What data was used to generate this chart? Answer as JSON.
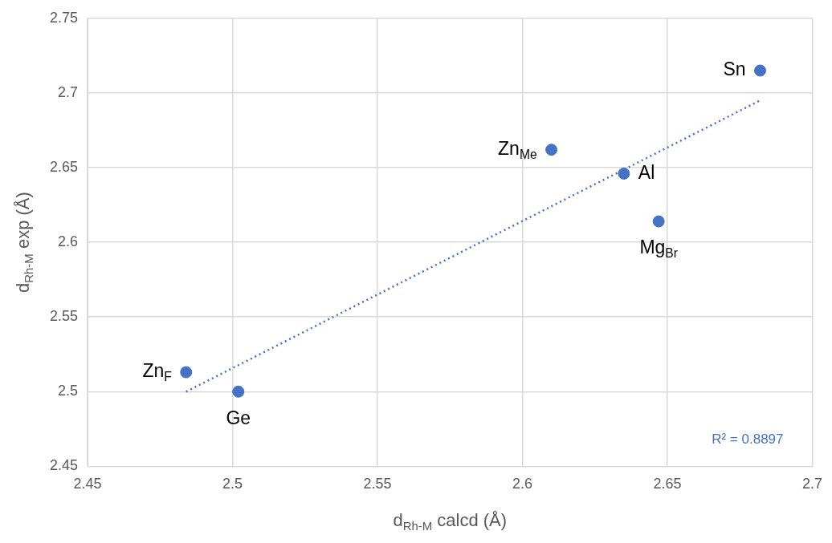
{
  "chart_data": {
    "type": "scatter",
    "xlabel": "d$_{Rh-M}$ calcd (Å)",
    "ylabel": "d$_{Rh-M}$ exp (Å)",
    "xlim": [
      2.45,
      2.7
    ],
    "xticks": [
      2.45,
      2.5,
      2.55,
      2.6,
      2.65,
      2.7
    ],
    "ylim": [
      2.45,
      2.75
    ],
    "yticks": [
      2.45,
      2.5,
      2.55,
      2.6,
      2.65,
      2.7,
      2.75
    ],
    "grid": true,
    "legend": false,
    "marker": "circle",
    "series": [
      {
        "color": "#4472c4",
        "x": [
          2.682,
          2.61,
          2.635,
          2.647,
          2.484,
          2.502
        ],
        "values": [
          2.715,
          2.662,
          2.646,
          2.614,
          2.513,
          2.5
        ]
      },
      {
        "type": "line",
        "color": "#4472c4",
        "line_style": "dotted",
        "marker": "none",
        "x": [
          2.484,
          2.682
        ],
        "values": [
          2.5,
          2.695
        ]
      }
    ],
    "annotations": [
      {
        "text": "Sn",
        "x": 2.682,
        "y": 2.715
      },
      {
        "text": "Zn$_{Me}$",
        "x": 2.61,
        "y": 2.662
      },
      {
        "text": "Al",
        "x": 2.635,
        "y": 2.646
      },
      {
        "text": "Mg$_{Br}$",
        "x": 2.647,
        "y": 2.614
      },
      {
        "text": "Zn$_{F}$",
        "x": 2.484,
        "y": 2.513
      },
      {
        "text": "Ge",
        "x": 2.502,
        "y": 2.5
      },
      "R² = 0.8897"
    ]
  }
}
